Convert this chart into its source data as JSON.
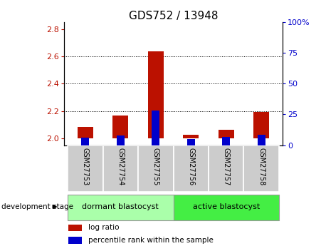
{
  "title": "GDS752 / 13948",
  "samples": [
    "GSM27753",
    "GSM27754",
    "GSM27755",
    "GSM27756",
    "GSM27757",
    "GSM27758"
  ],
  "log_ratio_values": [
    2.085,
    2.165,
    2.635,
    2.025,
    2.065,
    2.195
  ],
  "log_ratio_base": 2.0,
  "percentile_values": [
    6.0,
    8.0,
    28.0,
    5.0,
    6.5,
    8.5
  ],
  "percentile_base": 0.0,
  "ylim_left": [
    1.95,
    2.85
  ],
  "ylim_right": [
    0,
    100
  ],
  "yticks_left": [
    2.0,
    2.2,
    2.4,
    2.6,
    2.8
  ],
  "yticks_right": [
    0,
    25,
    50,
    75,
    100
  ],
  "groups": [
    {
      "label": "dormant blastocyst",
      "samples": [
        0,
        1,
        2
      ],
      "color": "#aaffaa"
    },
    {
      "label": "active blastocyst",
      "samples": [
        3,
        4,
        5
      ],
      "color": "#44ee44"
    }
  ],
  "group_label": "development stage",
  "bar_color_red": "#bb1100",
  "bar_color_blue": "#0000cc",
  "bar_width": 0.45,
  "blue_bar_width": 0.22,
  "bg_color_plot": "#ffffff",
  "bg_color_sample_row": "#cccccc",
  "legend_items": [
    "log ratio",
    "percentile rank within the sample"
  ],
  "dotted_line_color": "#000000",
  "title_fontsize": 11,
  "tick_fontsize": 8,
  "label_fontsize": 8
}
